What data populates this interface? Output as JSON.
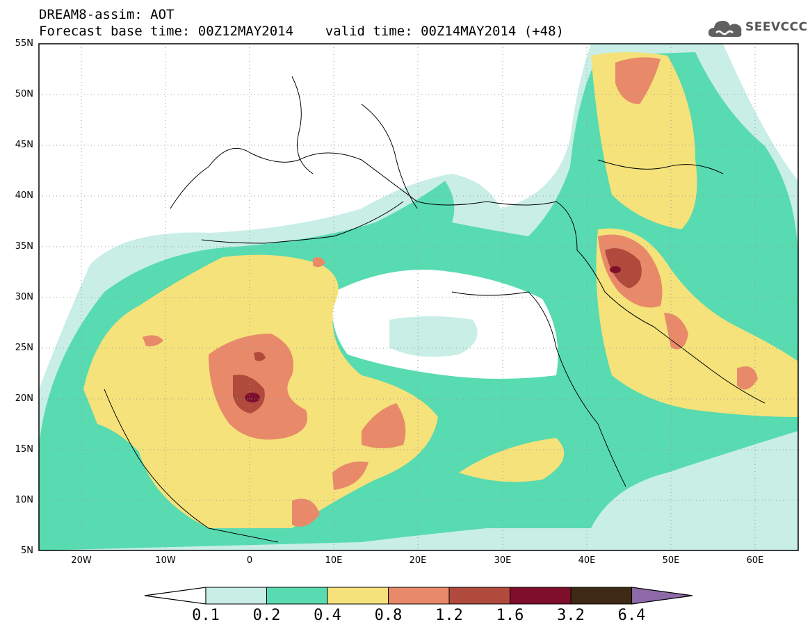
{
  "header": {
    "title_line1": "DREAM8-assim: AOT",
    "title_line2": "Forecast base time: 00Z12MAY2014    valid time: 00Z14MAY2014 (+48)"
  },
  "logo": {
    "text": "SEEVCCC",
    "icon": "cloud-logo-icon"
  },
  "map": {
    "projection": "lat-lon",
    "lon_range": [
      -25,
      65
    ],
    "lat_range": [
      5,
      55
    ],
    "grid": "dotted",
    "y_ticks": [
      "55N",
      "50N",
      "45N",
      "40N",
      "35N",
      "30N",
      "25N",
      "20N",
      "15N",
      "10N",
      "5N"
    ],
    "x_ticks": [
      "20W",
      "10W",
      "0",
      "10E",
      "20E",
      "30E",
      "40E",
      "50E",
      "60E"
    ]
  },
  "colorbar": {
    "levels": [
      "0.1",
      "0.2",
      "0.4",
      "0.8",
      "1.2",
      "1.6",
      "3.2",
      "6.4"
    ],
    "colors": [
      "#c8eee6",
      "#58dbb0",
      "#f5e27a",
      "#e88a6a",
      "#b04a3c",
      "#7e0e2c",
      "#3e2a14",
      "#8f6aa8"
    ],
    "left_arrow_color": "#ffffff",
    "right_arrow_color": "#8f6aa8"
  }
}
